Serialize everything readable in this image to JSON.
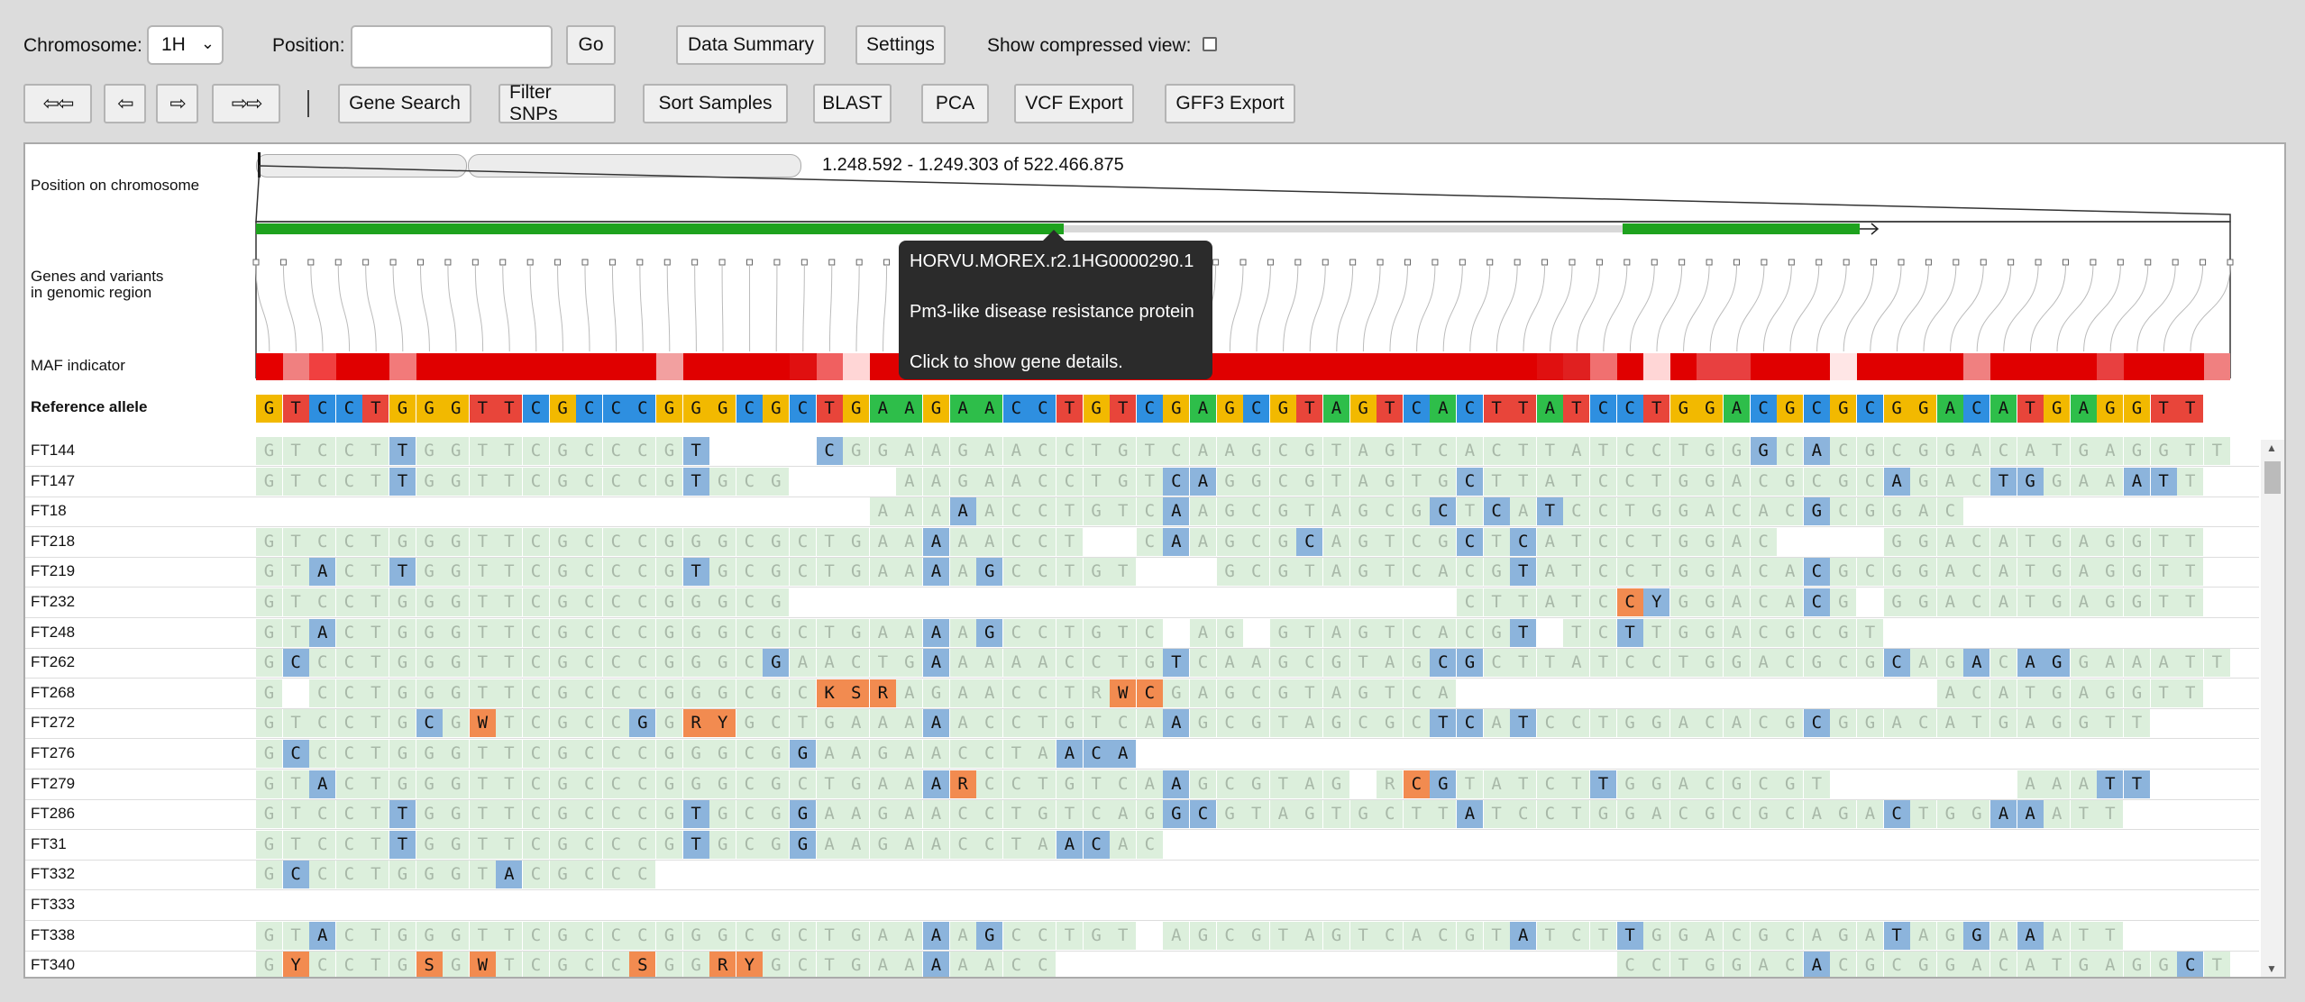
{
  "toolbar": {
    "chromosome_label": "Chromosome:",
    "chromosome_value": "1H",
    "position_label": "Position:",
    "position_value": "",
    "go": "Go",
    "data_summary": "Data Summary",
    "settings": "Settings",
    "compressed_label": "Show compressed view:",
    "nav_far_left": "⇦⇦",
    "nav_left": "⇦",
    "nav_right": "⇨",
    "nav_far_right": "⇨⇨",
    "gene_search": "Gene Search",
    "filter_snps": "Filter SNPs",
    "sort_samples": "Sort Samples",
    "blast": "BLAST",
    "pca": "PCA",
    "vcf_export": "VCF Export",
    "gff3_export": "GFF3 Export"
  },
  "panel": {
    "position_on_chromosome": "Position on chromosome",
    "range_text": "1.248.592 - 1.249.303 of 522.466.875",
    "genes_label_1": "Genes and variants",
    "genes_label_2": "in genomic region",
    "maf_label": "MAF indicator",
    "reference_label": "Reference allele",
    "reference": "GTCCTGGGTTCGCCCGGGCGCTGAAGAACCTGTCGAGCGTAGTCACTTATCCTGGACGCGCGGACATGAGGTT",
    "maf_colors": [
      "#e50000",
      "#f08080",
      "#f04040",
      "#e00000",
      "#e00000",
      "#f27a7a",
      "#e00000",
      "#e00000",
      "#e00000",
      "#e00000",
      "#e00000",
      "#e00000",
      "#e00000",
      "#e00000",
      "#e00000",
      "#f2a0a0",
      "#e00000",
      "#e00000",
      "#e00000",
      "#e00000",
      "#e01010",
      "#f06060",
      "#ffd6d6",
      "#e00000",
      "#e00000",
      "#e00000",
      "#e00000",
      "#e00000",
      "#e00000",
      "#e00000",
      "#e00000",
      "#e00000",
      "#e00000",
      "#e00000",
      "#e00000",
      "#e00000",
      "#e00000",
      "#e00000",
      "#e00000",
      "#e00000",
      "#e00000",
      "#e00000",
      "#e00000",
      "#e00000",
      "#e00000",
      "#e00000",
      "#e00000",
      "#e00000",
      "#e01010",
      "#e02020",
      "#f07070",
      "#e00000",
      "#ffd6d6",
      "#e00000",
      "#e84040",
      "#e84040",
      "#e00000",
      "#e00000",
      "#e00000",
      "#ffe6e6",
      "#e00000",
      "#e00000",
      "#e00000",
      "#e00000",
      "#f08080",
      "#e00000",
      "#e00000",
      "#e00000",
      "#e00000",
      "#e84040",
      "#e00000",
      "#e00000",
      "#e00000",
      "#f08080"
    ]
  },
  "tooltip": {
    "gene_id": "HORVU.MOREX.r2.1HG0000290.1",
    "description": "Pm3-like disease resistance protein",
    "hint": "Click to show gene details."
  },
  "samples": [
    {
      "name": "FT144",
      "cells": "GTCCTTGGTTCGCCCGT----CGGAAGAACCTGTCAAGCGTAGTCACTTATCCTGGGCACGCGGACATGAGGTT",
      "vars": [
        5,
        16,
        21,
        56,
        58
      ]
    },
    {
      "name": "FT147",
      "cells": "GTCCTTGGTTCGCCCGTGCG----AAGAACCTGTCAGGCGTAGTGCTTATCCTGGACGCGCAGACTGGAAATT",
      "vars": [
        5,
        16,
        34,
        35,
        45,
        61,
        65,
        66,
        70,
        71
      ]
    },
    {
      "name": "FT18",
      "cells": "-----------------------AAAAACCTGTCAAGCGTAGCGCTCATCCTGGACACGCGGAC--------",
      "vars": [
        26,
        34,
        44,
        46,
        48,
        58
      ]
    },
    {
      "name": "FT218",
      "cells": "GTCCTGGGTTCGCCCGGGCGCTGAAAAACCT--CAAGCGCAGTCGCTCATCCTGGAC----GGACATGAGGTT",
      "vars": [
        25,
        34,
        39,
        45,
        47
      ]
    },
    {
      "name": "FT219",
      "cells": "GTACTTGGTTCGCCCGTGCGCTGAAAAGCCTGT---GCGTAGTCACGTATCCTGGACACGCGGACATGAGGTT",
      "vars": [
        2,
        5,
        16,
        25,
        27,
        47,
        58
      ]
    },
    {
      "name": "FT232",
      "cells": "GTCCTGGGTTCGCCCGGGCG-------------------------CTTATCCYGGACACG-GGACATGAGGTT",
      "vars": [
        52,
        58
      ],
      "amb": [
        51
      ]
    },
    {
      "name": "FT248",
      "cells": "GTACTGGGTTCGCCCGGGCGCTGAAAAGCCTGTC-AG-GTAGTCACGT-TCTTGGACGCGT----------",
      "vars": [
        2,
        25,
        27,
        47,
        51,
        61
      ]
    },
    {
      "name": "FT262",
      "cells": "GCCCTGGGTTCGCCCGGGCGAACTGAAAAACCTGTCAAGCGTAGCGCTTATCCTGGACGCGCAGACAGGAAATT",
      "vars": [
        1,
        19,
        25,
        34,
        44,
        45,
        61,
        64,
        66,
        67
      ]
    },
    {
      "name": "FT268",
      "cells": "G-CCTGGGTTCGCCCGGGCGCKSRAGAACCTRWCGAGCGTAGTCA------------------ACATGAGGTT",
      "vars": [],
      "amb": [
        21,
        22,
        23,
        32,
        33
      ]
    },
    {
      "name": "FT272",
      "cells": "GTCCTGCGWTCGCCGGRYGCTGAAAAACCTGTCAAGCGTAGCGCTCATCCTGGACACGCGGACATGAGGTT",
      "vars": [
        6,
        14,
        25,
        34,
        44,
        45,
        47,
        58
      ],
      "amb": [
        8,
        16,
        17
      ]
    },
    {
      "name": "FT276",
      "cells": "GCCCTGGGTTCGCCCGGGCGGAAGAACCTAACA-----------------------------------------",
      "vars": [
        1,
        20,
        30,
        31,
        32,
        34
      ]
    },
    {
      "name": "FT279",
      "cells": "GTACTGGGTTCGCCCGGGCGCTGAAARCCTGTCAAGCGTAG-RCGTATCTTGGACGCGT-------AAATT",
      "vars": [
        2,
        25,
        34,
        44,
        50,
        61,
        69,
        70
      ],
      "amb": [
        26,
        43
      ]
    },
    {
      "name": "FT286",
      "cells": "GTCCTTGGTTCGCCCGTGCGGAAGAACCTGTCAGGCGTAGTGCTTATCCTGGACGCGCAGACTGGAAATT",
      "vars": [
        5,
        16,
        20,
        34,
        35,
        45,
        61,
        65,
        66,
        70,
        71
      ]
    },
    {
      "name": "FT31",
      "cells": "GTCCTTGGTTCGCCCGTGCGGAAGAACCTAACAC-------------------------------------",
      "vars": [
        5,
        16,
        20,
        30,
        31,
        34,
        35
      ]
    },
    {
      "name": "FT332",
      "cells": "GCCCTGGGTACGCCC-----------------------------------------------------------",
      "vars": [
        1,
        9
      ]
    },
    {
      "name": "FT333",
      "cells": "--------------------------------------------------------------------------",
      "vars": []
    },
    {
      "name": "FT338",
      "cells": "GTACTGGGTTCGCCCGGGCGCTGAAAAGCCTGT-AGCGTAGTCACGTATCTTGGACGCAGATAGGAAATT",
      "vars": [
        2,
        25,
        27,
        47,
        51,
        61,
        64,
        66,
        70,
        71
      ]
    },
    {
      "name": "FT340",
      "cells": "GYCCTGSGWTCGCCSGGRYGCTGAAAAACC---------------------CCTGGACACGCGGACATGAGGCT",
      "vars": [
        25,
        58,
        72
      ],
      "amb": [
        1,
        6,
        8,
        14,
        17,
        18
      ]
    }
  ]
}
